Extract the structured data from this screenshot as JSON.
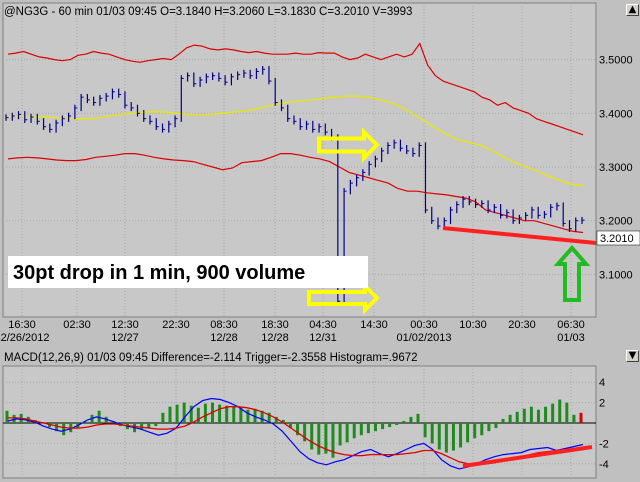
{
  "window": {
    "title": "@NG3G - 60 min 01/03 09:45 O=3.1840 H=3.2060 L=3.1830 C=3.2010 V=3993",
    "controls": [
      "▲",
      "▼"
    ]
  },
  "annotation_text": "30pt drop in 1 min, 900 volume",
  "price_tag": "3.2010",
  "macd": {
    "title": "MACD(12,26,9) 01/03 09:45 Difference=-2.114 Trigger=-2.3558 Histogram=.9672"
  },
  "colors": {
    "price": "#00008b",
    "bands": "#dd0000",
    "mid": "#e8e800",
    "annotation_line": "#ff2020",
    "arrow_yellow": "#ffff00",
    "arrow_green": "#22bb22",
    "hist": "#1e8b1e",
    "macd_line": "#0000ff",
    "trigger_line": "#dd0000"
  },
  "chart_data": [
    {
      "type": "line",
      "ylim": [
        3.03,
        3.57
      ],
      "y_ticks": [
        "3.5000",
        "3.4000",
        "3.3000",
        "3.2000",
        "3.1000"
      ],
      "x_ticks": [
        {
          "time": "16:30",
          "date": "12/26/2012"
        },
        {
          "time": "02:30",
          "date": ""
        },
        {
          "time": "12:30",
          "date": "12/27"
        },
        {
          "time": "22:30",
          "date": ""
        },
        {
          "time": "08:30",
          "date": "12/28"
        },
        {
          "time": "18:30",
          "date": "12/28"
        },
        {
          "time": "04:30",
          "date": "12/31"
        },
        {
          "time": "14:30",
          "date": ""
        },
        {
          "time": "00:30",
          "date": "01/02/2013"
        },
        {
          "time": "10:30",
          "date": ""
        },
        {
          "time": "20:30",
          "date": ""
        },
        {
          "time": "06:30",
          "date": "01/03"
        }
      ],
      "series": [
        {
          "role": "price",
          "values": [
            3.392,
            3.395,
            3.398,
            3.388,
            3.393,
            3.385,
            3.375,
            3.37,
            3.382,
            3.39,
            3.395,
            3.41,
            3.43,
            3.425,
            3.42,
            3.428,
            3.432,
            3.44,
            3.435,
            3.415,
            3.41,
            3.4,
            3.39,
            3.385,
            3.375,
            3.37,
            3.38,
            3.39,
            3.465,
            3.47,
            3.455,
            3.462,
            3.468,
            3.47,
            3.465,
            3.458,
            3.468,
            3.472,
            3.475,
            3.47,
            3.478,
            3.482,
            3.46,
            3.42,
            3.41,
            3.39,
            3.385,
            3.375,
            3.38,
            3.37,
            3.375,
            3.365,
            3.355,
            3.05,
            3.255,
            3.27,
            3.28,
            3.29,
            3.305,
            3.315,
            3.33,
            3.34,
            3.345,
            3.335,
            3.33,
            3.325,
            3.34,
            3.22,
            3.2,
            3.19,
            3.2,
            3.22,
            3.23,
            3.24,
            3.235,
            3.23,
            3.232,
            3.22,
            3.225,
            3.21,
            3.215,
            3.2,
            3.205,
            3.21,
            3.22,
            3.21,
            3.212,
            3.225,
            3.228,
            3.195,
            3.185,
            3.2,
            3.201
          ]
        },
        {
          "role": "upper_band",
          "values": [
            3.51,
            3.512,
            3.515,
            3.51,
            3.505,
            3.503,
            3.5,
            3.498,
            3.5,
            3.508,
            3.51,
            3.515,
            3.512,
            3.51,
            3.505,
            3.5,
            3.497,
            3.495,
            3.498,
            3.5,
            3.502,
            3.5,
            3.51,
            3.522,
            3.527,
            3.525,
            3.52,
            3.518,
            3.52,
            3.518,
            3.515,
            3.513,
            3.515,
            3.512,
            3.51,
            3.51,
            3.51,
            3.512,
            3.51,
            3.51,
            3.513,
            3.512,
            3.512,
            3.505,
            3.5,
            3.503,
            3.51,
            3.505,
            3.5,
            3.505,
            3.51,
            3.505,
            3.51,
            3.53,
            3.49,
            3.47,
            3.46,
            3.455,
            3.45,
            3.445,
            3.44,
            3.43,
            3.425,
            3.415,
            3.42,
            3.41,
            3.405,
            3.4,
            3.39,
            3.385,
            3.38,
            3.375,
            3.37,
            3.365,
            3.36
          ]
        },
        {
          "role": "middle",
          "values": [
            3.395,
            3.395,
            3.394,
            3.393,
            3.392,
            3.391,
            3.39,
            3.39,
            3.391,
            3.395,
            3.398,
            3.4,
            3.402,
            3.403,
            3.402,
            3.4,
            3.398,
            3.397,
            3.398,
            3.4,
            3.402,
            3.404,
            3.408,
            3.413,
            3.418,
            3.421,
            3.423,
            3.425,
            3.428,
            3.43,
            3.432,
            3.432,
            3.43,
            3.425,
            3.42,
            3.41,
            3.398,
            3.385,
            3.372,
            3.36,
            3.35,
            3.345,
            3.34,
            3.33,
            3.318,
            3.308,
            3.3,
            3.292,
            3.283,
            3.275,
            3.268,
            3.265
          ]
        },
        {
          "role": "lower_band",
          "values": [
            3.315,
            3.317,
            3.318,
            3.317,
            3.315,
            3.313,
            3.312,
            3.312,
            3.314,
            3.318,
            3.32,
            3.322,
            3.325,
            3.325,
            3.322,
            3.318,
            3.315,
            3.313,
            3.312,
            3.31,
            3.305,
            3.3,
            3.295,
            3.298,
            3.308,
            3.31,
            3.312,
            3.318,
            3.325,
            3.325,
            3.322,
            3.318,
            3.315,
            3.31,
            3.3,
            3.29,
            3.285,
            3.28,
            3.275,
            3.27,
            3.26,
            3.255,
            3.255,
            3.252,
            3.25,
            3.248,
            3.245,
            3.242,
            3.235,
            3.22,
            3.215,
            3.21,
            3.205,
            3.2,
            3.2,
            3.195,
            3.19,
            3.185,
            3.18,
            3.178
          ]
        }
      ]
    },
    {
      "type": "bar",
      "ylim": [
        -5,
        5
      ],
      "y_ticks": [
        4,
        2,
        -2,
        -4
      ],
      "series": [
        {
          "name": "Histogram",
          "values": [
            1.2,
            0.8,
            0.9,
            0.6,
            0.3,
            0.1,
            -0.4,
            -0.8,
            -1.2,
            -0.9,
            -0.5,
            0.2,
            0.8,
            1.2,
            0.6,
            0.2,
            -0.3,
            -0.6,
            -0.9,
            -0.7,
            -0.5,
            -0.3,
            1.0,
            1.6,
            1.8,
            2.0,
            1.7,
            1.5,
            1.9,
            2.0,
            1.8,
            1.7,
            1.6,
            1.5,
            1.3,
            1.4,
            1.2,
            1.0,
            0.6,
            0.3,
            -0.5,
            -1.2,
            -1.8,
            -2.6,
            -3.1,
            -3.0,
            -3.4,
            -2.2,
            -1.9,
            -1.5,
            -1.2,
            -1.0,
            -0.8,
            -0.6,
            -0.4,
            -0.2,
            0.2,
            0.6,
            0.9,
            -1.4,
            -2.0,
            -2.6,
            -2.9,
            -2.7,
            -2.4,
            -1.9,
            -1.5,
            -1.2,
            -0.8,
            -0.5,
            0.4,
            0.8,
            1.1,
            1.4,
            1.6,
            1.3,
            1.6,
            1.9,
            2.3,
            2.0,
            0.8,
            1.0
          ]
        },
        {
          "name": "Difference",
          "values": [
            0.2,
            0.4,
            0.3,
            0.1,
            -0.3,
            -0.6,
            -0.8,
            -0.6,
            -0.2,
            0.3,
            0.6,
            0.4,
            0.1,
            -0.2,
            -0.4,
            -0.6,
            -0.9,
            -1.2,
            -1.0,
            -0.5,
            0.6,
            1.6,
            2.2,
            2.4,
            2.3,
            2.0,
            1.6,
            1.0,
            0.6,
            0.3,
            -0.1,
            -0.8,
            -1.8,
            -2.8,
            -3.5,
            -3.9,
            -4.1,
            -3.8,
            -3.6,
            -3.2,
            -2.8,
            -2.6,
            -3.0,
            -3.3,
            -3.0,
            -2.6,
            -2.2,
            -2.0,
            -2.6,
            -3.6,
            -4.2,
            -4.5,
            -4.3,
            -4.0,
            -3.6,
            -3.3,
            -3.1,
            -3.0,
            -2.9,
            -2.6,
            -2.5,
            -2.4,
            -2.7,
            -2.5,
            -2.3,
            -2.11
          ]
        },
        {
          "name": "Trigger",
          "values": [
            0.5,
            0.5,
            0.4,
            0.2,
            0.0,
            -0.2,
            -0.4,
            -0.5,
            -0.5,
            -0.4,
            -0.2,
            -0.1,
            -0.1,
            -0.2,
            -0.3,
            -0.4,
            -0.5,
            -0.6,
            -0.6,
            -0.5,
            -0.3,
            0.1,
            0.6,
            1.0,
            1.4,
            1.6,
            1.6,
            1.5,
            1.3,
            1.0,
            0.6,
            0.1,
            -0.5,
            -1.1,
            -1.7,
            -2.2,
            -2.6,
            -2.9,
            -3.1,
            -3.2,
            -3.2,
            -3.1,
            -3.1,
            -3.1,
            -3.1,
            -3.0,
            -2.9,
            -2.7,
            -2.7,
            -3.0,
            -3.4,
            -3.8,
            -4.0,
            -4.1,
            -4.0,
            -3.9,
            -3.7,
            -3.5,
            -3.3,
            -3.1,
            -2.9,
            -2.8,
            -2.7,
            -2.6,
            -2.5,
            -2.36
          ]
        }
      ]
    }
  ]
}
